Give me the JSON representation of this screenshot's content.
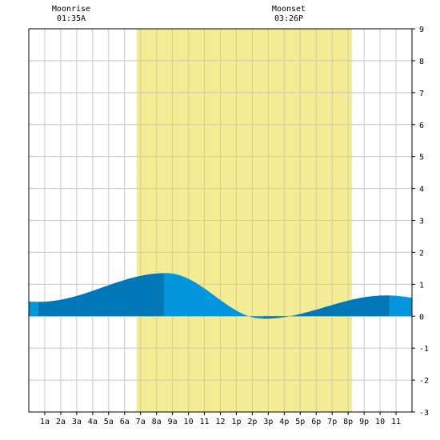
{
  "header": {
    "moonrise_label": "Moonrise",
    "moonrise_time": "01:35A",
    "moonset_label": "Moonset",
    "moonset_time": "03:26P"
  },
  "colors": {
    "daylight": "#f3ec94",
    "tide_dark": "#0077b6",
    "tide_light": "#0496dc",
    "grid": "#c8c8c8",
    "axis": "#000000"
  },
  "chart_data": {
    "type": "area",
    "x_tick_labels": [
      "1a",
      "2a",
      "3a",
      "4a",
      "5a",
      "6a",
      "7a",
      "8a",
      "9a",
      "10",
      "11",
      "12",
      "1p",
      "2p",
      "3p",
      "4p",
      "5p",
      "6p",
      "7p",
      "8p",
      "9p",
      "10",
      "11"
    ],
    "x_tick_hours": [
      1,
      2,
      3,
      4,
      5,
      6,
      7,
      8,
      9,
      10,
      11,
      12,
      13,
      14,
      15,
      16,
      17,
      18,
      19,
      20,
      21,
      22,
      23
    ],
    "y_tick_labels": [
      "9",
      "8",
      "7",
      "6",
      "5",
      "4",
      "3",
      "2",
      "1",
      "0",
      "-1",
      "-2",
      "-3"
    ],
    "y_tick_values": [
      9,
      8,
      7,
      6,
      5,
      4,
      3,
      2,
      1,
      0,
      -1,
      -2,
      -3
    ],
    "ylim": [
      -3,
      9
    ],
    "xlim": [
      0,
      24
    ],
    "daylight_hours": [
      6.75,
      20.25
    ],
    "moonrise_hour": 1.58,
    "moonset_hour": 15.43,
    "tide_extremes": [
      {
        "hour": 0.6,
        "height": 0.45,
        "type": "low"
      },
      {
        "hour": 8.6,
        "height": 1.35,
        "type": "high"
      },
      {
        "hour": 14.7,
        "height": -0.08,
        "type": "low"
      },
      {
        "hour": 22.4,
        "height": 0.65,
        "type": "high"
      }
    ],
    "tide_shading_segments": [
      {
        "from": 0.0,
        "to": 0.6,
        "shade": "light"
      },
      {
        "from": 0.6,
        "to": 8.5,
        "shade": "dark"
      },
      {
        "from": 8.5,
        "to": 14.7,
        "shade": "light"
      },
      {
        "from": 14.7,
        "to": 22.6,
        "shade": "dark"
      },
      {
        "from": 22.6,
        "to": 24.0,
        "shade": "light"
      }
    ]
  }
}
